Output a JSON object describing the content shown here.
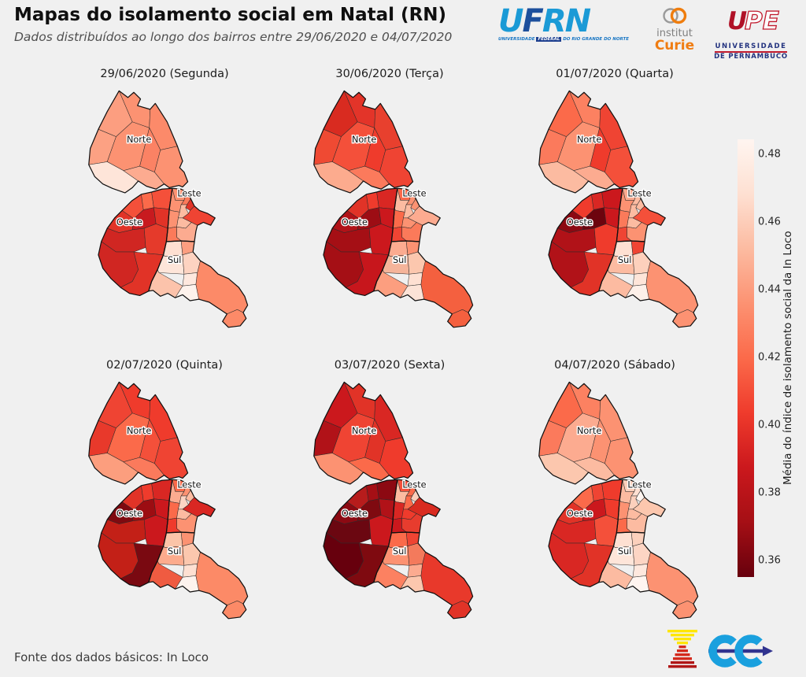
{
  "header": {
    "title": "Mapas do isolamento social em Natal (RN)",
    "subtitle": "Dados distribuídos ao longo dos bairros entre 29/06/2020 e 04/07/2020"
  },
  "logos": {
    "ufrn": {
      "u": "U",
      "f": "F",
      "rn": "RN",
      "cap_pre": "UNIVERSIDADE",
      "cap_fed": "FEDERAL",
      "cap_post": "DO RIO GRANDE DO NORTE"
    },
    "curie": {
      "line1": "institut",
      "line2": "Curie"
    },
    "upe": {
      "u": "U",
      "pe": "PE",
      "cap1": "UNIVERSIDADE",
      "cap2": "DE PERNAMBUCO"
    }
  },
  "region_labels": [
    "Norte",
    "Leste",
    "Oeste",
    "Sul"
  ],
  "panels": [
    {
      "title": "29/06/2020 (Segunda)",
      "fills": [
        "#fc9e80",
        "#fc9272",
        "#fc8a6a",
        "#fca183",
        "#fc9272",
        "#fb8264",
        "#fc9272",
        "#fee5d9",
        "#fcab90",
        "#f4503a",
        "#fb6a4a",
        "#f4503a",
        "#e13327",
        "#c81a1f",
        "#e13327",
        "#d02622",
        "#d02622",
        "#e53a2b",
        "#e13327",
        "#fc9272",
        "#fb7a5a",
        "#fc9272",
        "#e13327",
        "#fcbba1",
        "#ef4433",
        "#fcbba1",
        "#fcab90",
        "#fc9272",
        "#fb7a5a",
        "#fee0d2",
        "#fc9e80",
        "#fee5d9",
        "#fdd3c1",
        "#fee8de",
        "#fcc3ab",
        "#fdf2ec",
        "#fc8a68",
        "#fc8a68"
      ]
    },
    {
      "title": "30/06/2020 (Terça)",
      "fills": [
        "#d92b20",
        "#e33429",
        "#e8402e",
        "#ef4a33",
        "#f4503a",
        "#ef3b2c",
        "#ef4433",
        "#fcab8e",
        "#fb7a5c",
        "#e13327",
        "#ef3b2c",
        "#d92723",
        "#b11218",
        "#9d0d14",
        "#cb181d",
        "#a50f15",
        "#a50f15",
        "#cb181d",
        "#c7161c",
        "#fb6a4a",
        "#fc9272",
        "#fcbba1",
        "#fc9272",
        "#fcbba1",
        "#fcab90",
        "#fc9272",
        "#fb7a5a",
        "#fb6a4a",
        "#ef4433",
        "#fcab90",
        "#fc9272",
        "#f5b49a",
        "#fcc7ae",
        "#fee0d2",
        "#fc9e7f",
        "#fce3d7",
        "#f4603f",
        "#f4603f"
      ]
    },
    {
      "title": "01/07/2020 (Quarta)",
      "fills": [
        "#fb6a4a",
        "#fc8161",
        "#ef4433",
        "#fb7a5c",
        "#fc9272",
        "#ef3b2c",
        "#f4503a",
        "#fcbba1",
        "#fcab90",
        "#ef3b2c",
        "#d92723",
        "#cb181d",
        "#8c0912",
        "#6d040e",
        "#cb181d",
        "#b11218",
        "#b11218",
        "#ef3b2c",
        "#e13327",
        "#fcab90",
        "#fcbba1",
        "#fc9272",
        "#fcbba1",
        "#fcbba1",
        "#f4503a",
        "#fcbba1",
        "#fc9272",
        "#fb7a5a",
        "#ef4433",
        "#fee0d2",
        "#ef4433",
        "#fcbba1",
        "#fdd0bc",
        "#fee5d9",
        "#fcbba1",
        "#fdf0e9",
        "#fc9272",
        "#fc9272"
      ]
    },
    {
      "title": "02/07/2020 (Quinta)",
      "fills": [
        "#ef4433",
        "#ef3b2c",
        "#ef3b2c",
        "#e8392b",
        "#fb6a4a",
        "#f4503a",
        "#ef4433",
        "#fc9e7e",
        "#fb7a5c",
        "#e13327",
        "#ef3b2c",
        "#d92723",
        "#7f0a10",
        "#9c0d12",
        "#cb181d",
        "#c32017",
        "#c32017",
        "#cb181d",
        "#7a0911",
        "#fb6a4a",
        "#fc9272",
        "#fcab90",
        "#fcbba1",
        "#fcd5c4",
        "#d92723",
        "#fcbba1",
        "#fc9272",
        "#fb6a4a",
        "#ef3b2c",
        "#fbc4a8",
        "#fc9272",
        "#fcab8d",
        "#fcc7ae",
        "#fee0d2",
        "#ef5b41",
        "#fdf3ee",
        "#fc8a67",
        "#fc8a67"
      ]
    },
    {
      "title": "03/07/2020 (Sexta)",
      "fills": [
        "#cb181d",
        "#e13327",
        "#d92723",
        "#b11218",
        "#ef4433",
        "#e13327",
        "#ef3b2c",
        "#fc9272",
        "#fb6a4a",
        "#b71c1c",
        "#a50f15",
        "#8c0912",
        "#8c0912",
        "#7f0a10",
        "#b11218",
        "#6b0711",
        "#67000d",
        "#cb181d",
        "#7f0a10",
        "#f4503a",
        "#fb6a4a",
        "#fcbba1",
        "#fcd0bc",
        "#fb6a4a",
        "#d92b20",
        "#ef3b2c",
        "#e73c2e",
        "#d92723",
        "#cb181d",
        "#fb6a4a",
        "#ef4433",
        "#fc9272",
        "#f47a5c",
        "#fcab90",
        "#fc8161",
        "#fcc7ae",
        "#e8392b",
        "#e13327"
      ]
    },
    {
      "title": "04/07/2020 (Sábado)",
      "fills": [
        "#fb6a4a",
        "#fc8161",
        "#fc9272",
        "#fb7a5c",
        "#fcab90",
        "#fc9272",
        "#fc9272",
        "#fcc7ae",
        "#fcbba1",
        "#fb6a4a",
        "#ef4433",
        "#ef3b2c",
        "#e13327",
        "#cb181d",
        "#ef3b2c",
        "#d92723",
        "#d92723",
        "#f4503a",
        "#e13327",
        "#fcd0bc",
        "#fee0d2",
        "#fcbba1",
        "#fff5f0",
        "#fcd0bc",
        "#fcc7ae",
        "#fcbba1",
        "#fcbba1",
        "#fc9272",
        "#fb6a4a",
        "#fee0d2",
        "#fcd0bc",
        "#fee5d9",
        "#fdd5c4",
        "#fee8de",
        "#fcbba1",
        "#fff5f0",
        "#fc9272",
        "#fc9272"
      ]
    }
  ],
  "colorbar": {
    "label": "Média do índice de isolamento social da In Loco",
    "ticks": [
      "0.48",
      "0.46",
      "0.44",
      "0.42",
      "0.40",
      "0.38",
      "0.36"
    ],
    "gradient": [
      "#fff5f0",
      "#fee0d2",
      "#fcbba1",
      "#fc9272",
      "#fb6a4a",
      "#ef3b2c",
      "#cb181d",
      "#a50f15",
      "#67000d"
    ]
  },
  "footer": {
    "source": "Fonte dos dados básicos: In Loco"
  },
  "colors": {
    "background": "#f0f0f0",
    "colormap": "Reds"
  },
  "chart_data": {
    "type": "heatmap",
    "subtype": "choropleth-small-multiples",
    "title": "Mapas do isolamento social em Natal (RN)",
    "subtitle": "Dados distribuídos ao longo dos bairros entre 29/06/2020 e 04/07/2020",
    "panels": [
      "29/06/2020 (Segunda)",
      "30/06/2020 (Terça)",
      "01/07/2020 (Quarta)",
      "02/07/2020 (Quinta)",
      "03/07/2020 (Sexta)",
      "04/07/2020 (Sábado)"
    ],
    "regions": [
      "Norte",
      "Leste",
      "Oeste",
      "Sul"
    ],
    "colorbar_label": "Média do índice de isolamento social da In Loco",
    "colorbar_range": [
      0.355,
      0.485
    ],
    "colorbar_ticks": [
      0.36,
      0.38,
      0.4,
      0.42,
      0.44,
      0.46,
      0.48
    ],
    "value_encoding": "lighter = higher isolation index, darker red = lower",
    "series": [
      {
        "name": "Norte",
        "values": [
          0.44,
          0.41,
          0.425,
          0.415,
          0.4,
          0.44
        ]
      },
      {
        "name": "Leste",
        "values": [
          0.43,
          0.44,
          0.445,
          0.43,
          0.415,
          0.455
        ]
      },
      {
        "name": "Oeste",
        "values": [
          0.4,
          0.375,
          0.38,
          0.375,
          0.365,
          0.39
        ]
      },
      {
        "name": "Sul",
        "values": [
          0.455,
          0.445,
          0.45,
          0.445,
          0.43,
          0.465
        ]
      }
    ],
    "note": "Region values are means estimated from fill colors against the colorbar",
    "source": "Fonte dos dados básicos: In Loco"
  }
}
